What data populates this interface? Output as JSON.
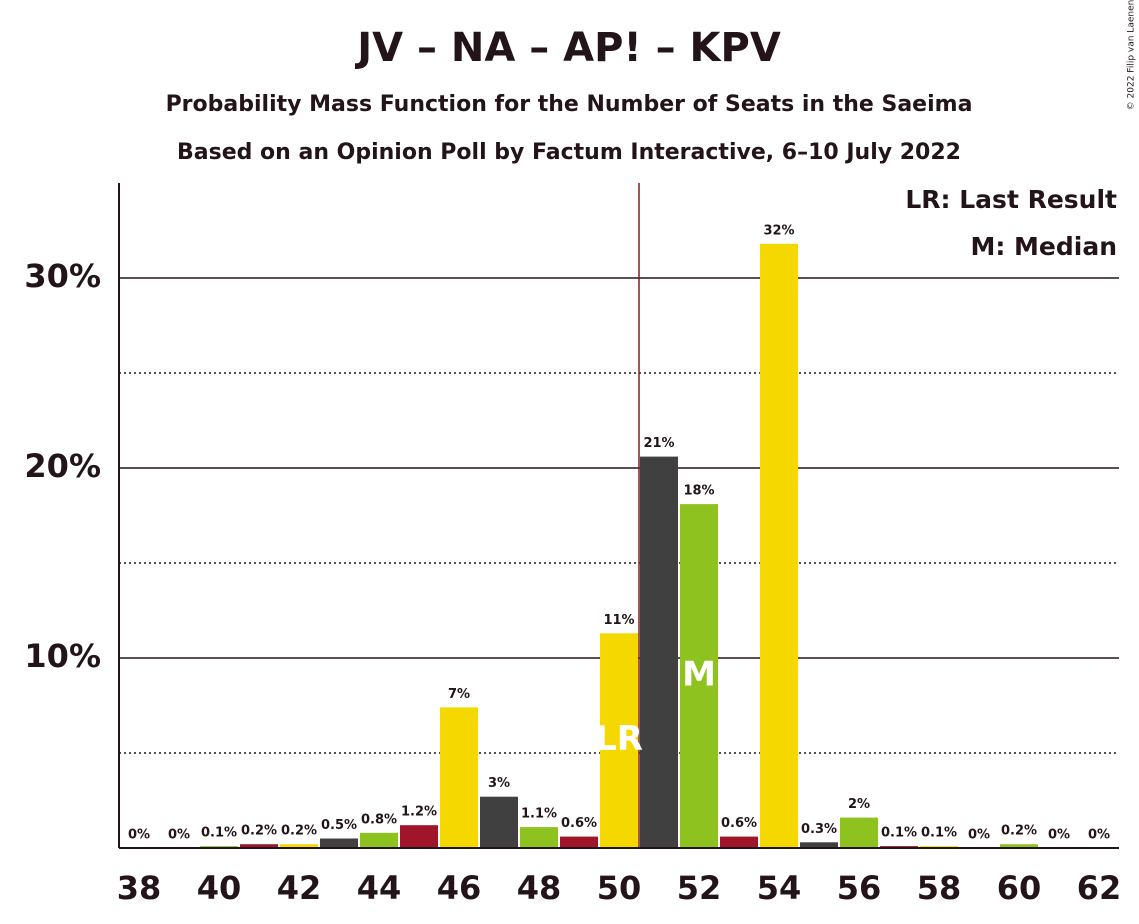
{
  "chart_data": {
    "type": "bar",
    "title": "JV – NA – AP! – KPV",
    "subtitle": "Probability Mass Function for the Number of Seats in the Saeima",
    "subtitle2": "Based on an Opinion Poll by Factum Interactive, 6–10 July 2022",
    "copyright": "© 2022 Filip van Laenen",
    "x": [
      38,
      39,
      40,
      41,
      42,
      43,
      44,
      45,
      46,
      47,
      48,
      49,
      50,
      51,
      52,
      53,
      54,
      55,
      56,
      57,
      58,
      59,
      60,
      61,
      62
    ],
    "values": [
      0,
      0,
      0.1,
      0.2,
      0.2,
      0.5,
      0.8,
      1.2,
      7.4,
      2.7,
      1.1,
      0.6,
      11.3,
      20.6,
      18.1,
      0.6,
      31.8,
      0.3,
      1.6,
      0.1,
      0.1,
      0,
      0.2,
      0,
      0
    ],
    "value_labels": [
      "0%",
      "0%",
      "0.1%",
      "0.2%",
      "0.2%",
      "0.5%",
      "0.8%",
      "1.2%",
      "7%",
      "3%",
      "1.1%",
      "0.6%",
      "11%",
      "21%",
      "18%",
      "0.6%",
      "32%",
      "0.3%",
      "2%",
      "0.1%",
      "0.1%",
      "0%",
      "0.2%",
      "0%",
      "0%"
    ],
    "colors": [
      "#f5d800",
      "#404040",
      "#8dc21f",
      "#a0152a",
      "#f5d800",
      "#404040",
      "#8dc21f",
      "#a0152a",
      "#f5d800",
      "#404040",
      "#8dc21f",
      "#a0152a",
      "#f5d800",
      "#404040",
      "#8dc21f",
      "#a0152a",
      "#f5d800",
      "#404040",
      "#8dc21f",
      "#a0152a",
      "#f5d800",
      "#404040",
      "#8dc21f",
      "#a0152a",
      "#f5d800"
    ],
    "xlim": [
      37.5,
      62.5
    ],
    "xticks": [
      38,
      40,
      42,
      44,
      46,
      48,
      50,
      52,
      54,
      56,
      58,
      60,
      62
    ],
    "ylim": [
      0,
      35
    ],
    "yticks": [
      {
        "value": 10,
        "label": "10%"
      },
      {
        "value": 20,
        "label": "20%"
      },
      {
        "value": 30,
        "label": "30%"
      }
    ],
    "minor_gridlines": [
      5,
      15,
      25
    ],
    "majority_line": 50.5,
    "annotations": [
      {
        "x": 50,
        "text": "LR"
      },
      {
        "x": 52,
        "text": "M"
      }
    ],
    "legend": [
      "LR: Last Result",
      "M: Median"
    ]
  }
}
